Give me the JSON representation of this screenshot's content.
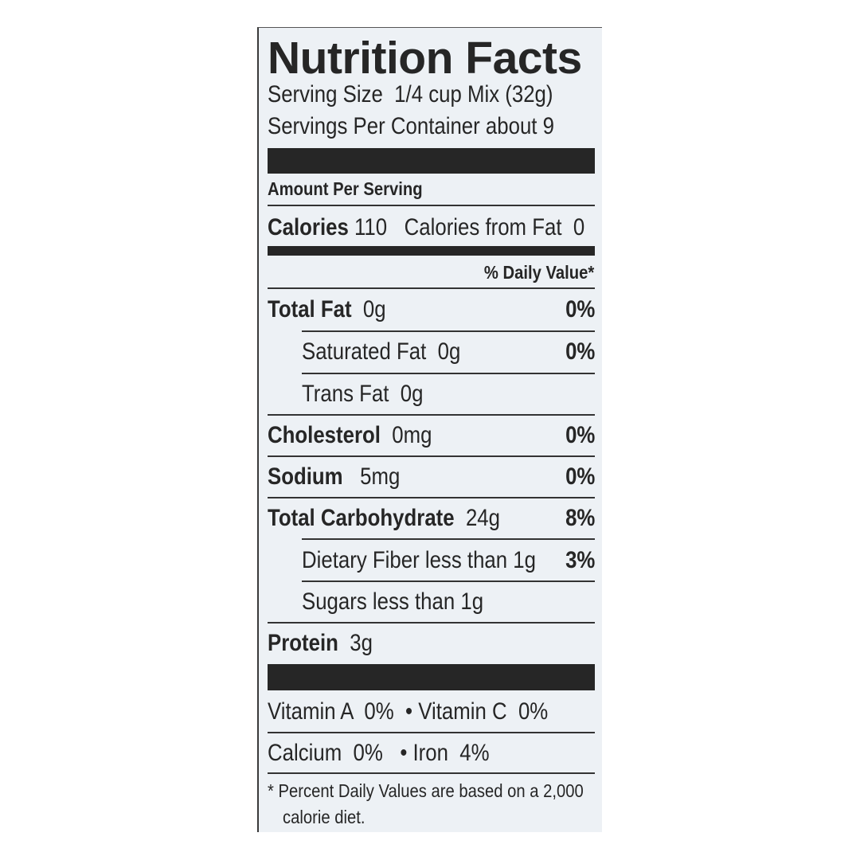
{
  "title": "Nutrition Facts",
  "serving_size": {
    "label": "Serving Size",
    "value": "1/4 cup Mix (32g)"
  },
  "servings_per_container": {
    "label": "Servings Per Container",
    "value": "about 9"
  },
  "amount_per_serving": "Amount Per Serving",
  "calories": {
    "label": "Calories",
    "value": "110",
    "from_fat_label": "Calories from Fat",
    "from_fat_value": "0"
  },
  "daily_value_header": "% Daily Value*",
  "nutrients": [
    {
      "name": "Total Fat",
      "amount": "0g",
      "dv": "0%"
    },
    {
      "name": "Saturated Fat",
      "amount": "0g",
      "dv": "0%"
    },
    {
      "name": "Trans Fat",
      "amount": "0g",
      "dv": ""
    },
    {
      "name": "Cholesterol",
      "amount": "0mg",
      "dv": "0%"
    },
    {
      "name": "Sodium",
      "amount": "5mg",
      "dv": "0%"
    },
    {
      "name": "Total Carbohydrate",
      "amount": "24g",
      "dv": "8%"
    },
    {
      "name": "Dietary Fiber",
      "amount": "less than 1g",
      "dv": "3%"
    },
    {
      "name": "Sugars",
      "amount": "less than 1g",
      "dv": ""
    },
    {
      "name": "Protein",
      "amount": "3g",
      "dv": ""
    }
  ],
  "vitamins": {
    "row1": "Vitamin A  0%  • Vitamin C  0%",
    "row2": "Calcium  0%   • Iron  4%"
  },
  "footnote": {
    "line1": "* Percent Daily Values are based on a 2,000",
    "line2": "calorie diet."
  }
}
